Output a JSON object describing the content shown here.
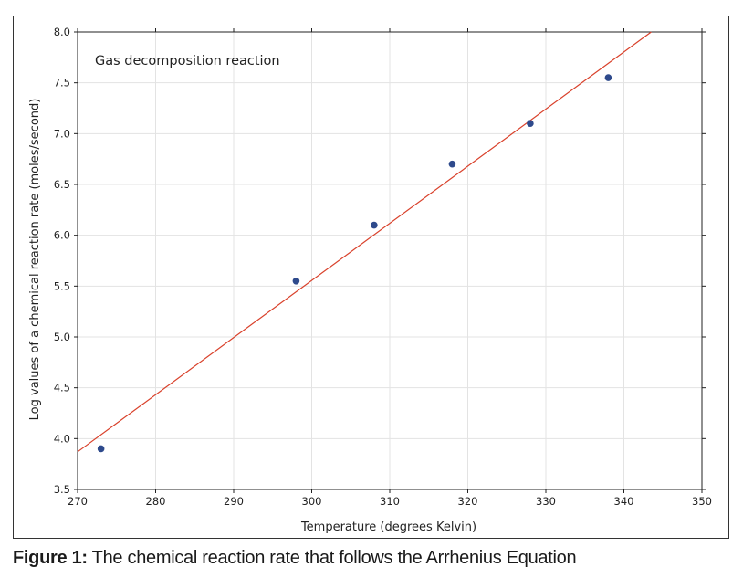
{
  "caption": {
    "label": "Figure 1:",
    "text": "The chemical reaction rate that follows the Arrhenius Equation"
  },
  "colors": {
    "points": "#2e4a8c",
    "fit_line": "#d9412b",
    "grid": "#e3e3e3",
    "axis": "#222222",
    "text": "#222222"
  },
  "chart_data": {
    "type": "scatter",
    "title": "Gas decomposition reaction",
    "xlabel": "Temperature (degrees Kelvin)",
    "ylabel": "Log values of a chemical reaction rate (moles/second)",
    "xlim": [
      270,
      350
    ],
    "ylim": [
      3.5,
      8.0
    ],
    "xticks": [
      270,
      280,
      290,
      300,
      310,
      320,
      330,
      340,
      350
    ],
    "yticks": [
      "3.5",
      "4.0",
      "4.5",
      "5.0",
      "5.5",
      "6.0",
      "6.5",
      "7.0",
      "7.5",
      "8.0"
    ],
    "grid": true,
    "series": [
      {
        "x": [
          273,
          298,
          308,
          318,
          328,
          338
        ],
        "y": [
          3.9,
          5.55,
          6.1,
          6.7,
          7.1,
          7.55
        ]
      }
    ],
    "fit_line": {
      "x": [
        270,
        343.5
      ],
      "y": [
        3.87,
        8.0
      ]
    }
  }
}
